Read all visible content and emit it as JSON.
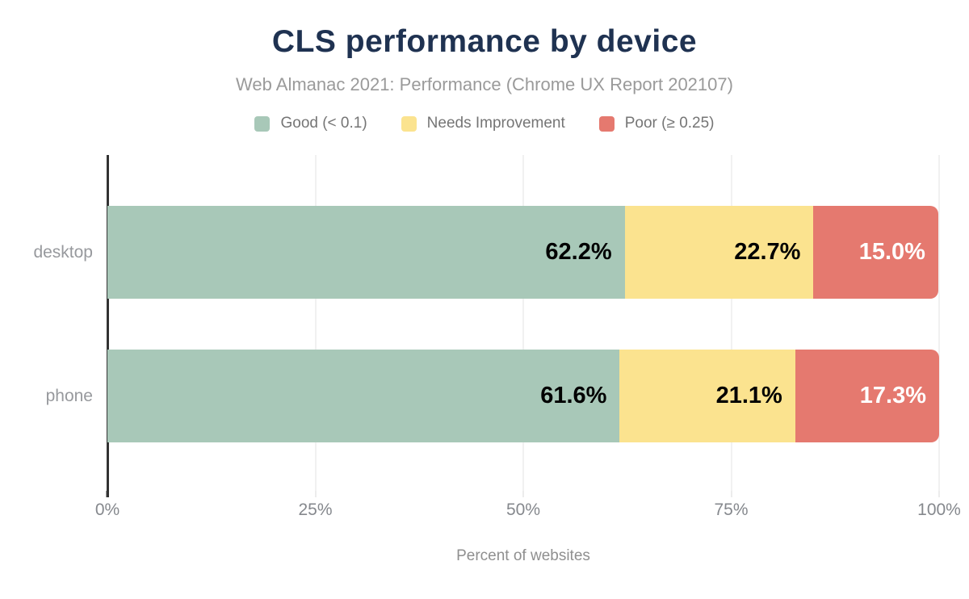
{
  "chart_data": {
    "type": "bar",
    "orientation": "horizontal",
    "stacked": true,
    "title": "CLS performance by device",
    "subtitle": "Web Almanac 2021: Performance (Chrome UX Report 202107)",
    "xlabel": "Percent of websites",
    "categories": [
      "desktop",
      "phone"
    ],
    "series": [
      {
        "name": "Good (< 0.1)",
        "color": "#a8c8b8",
        "label_color": "#000000",
        "values": [
          62.2,
          61.6
        ],
        "labels": [
          "62.2%",
          "61.6%"
        ]
      },
      {
        "name": "Needs Improvement",
        "color": "#fbe38f",
        "label_color": "#000000",
        "values": [
          22.7,
          21.1
        ],
        "labels": [
          "22.7%",
          "21.1%"
        ]
      },
      {
        "name": "Poor (≥ 0.25)",
        "color": "#e5796f",
        "label_color": "#ffffff",
        "values": [
          15.0,
          17.3
        ],
        "labels": [
          "15.0%",
          "17.3%"
        ]
      }
    ],
    "x_ticks": [
      "0%",
      "25%",
      "50%",
      "75%",
      "100%"
    ],
    "xlim": [
      0,
      100
    ],
    "grid": "vertical",
    "legend_position": "top",
    "colors": {
      "title_text": "#1f3251",
      "subtitle_text": "#9a9a9a",
      "legend_text": "#757575",
      "axis_text": "#85888d",
      "axis_line": "#333333",
      "gridline": "#f1f1f1",
      "background": "#ffffff"
    }
  }
}
